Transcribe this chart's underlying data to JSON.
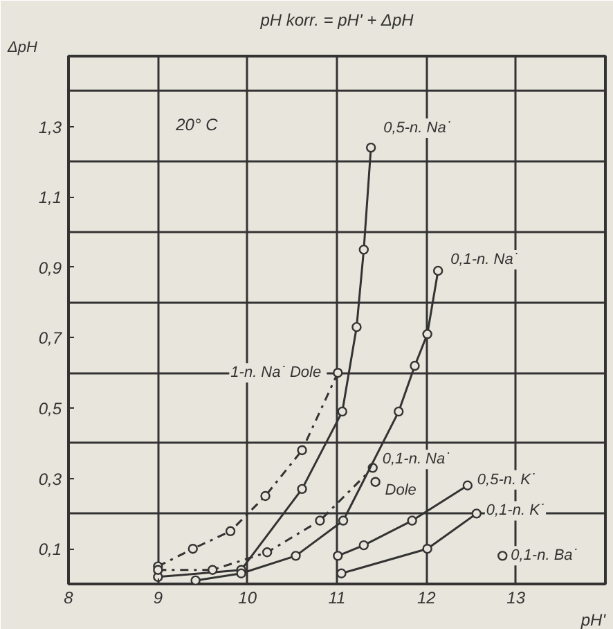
{
  "chart_data": {
    "type": "line",
    "title": "pH korr. = pH' + ΔpH",
    "xlabel": "pH'",
    "ylabel": "ΔpH",
    "xlim": [
      8,
      14
    ],
    "ylim": [
      0,
      1.5
    ],
    "xticks": [
      8,
      9,
      10,
      11,
      12,
      13,
      {
        "value": 14,
        "label": null
      }
    ],
    "yticks": [
      {
        "value": 0.1,
        "label": "0,1"
      },
      {
        "value": 0.2,
        "label": null
      },
      {
        "value": 0.3,
        "label": "0,3"
      },
      {
        "value": 0.4,
        "label": null
      },
      {
        "value": 0.5,
        "label": "0,5"
      },
      {
        "value": 0.6,
        "label": null
      },
      {
        "value": 0.7,
        "label": "0,7"
      },
      {
        "value": 0.8,
        "label": null
      },
      {
        "value": 0.9,
        "label": "0,9"
      },
      {
        "value": 1.0,
        "label": null
      },
      {
        "value": 1.1,
        "label": "1,1"
      },
      {
        "value": 1.2,
        "label": null
      },
      {
        "value": 1.3,
        "label": "1,3"
      },
      {
        "value": 1.4,
        "label": null
      }
    ],
    "grid": true,
    "marker": "circle",
    "series": [
      {
        "name": "1-n. Na˙  Dole",
        "color": "#333333",
        "line_style": "dashed",
        "x": [
          9.0,
          9.39,
          9.81,
          10.2,
          10.61,
          11.01
        ],
        "values": [
          0.05,
          0.1,
          0.15,
          0.25,
          0.38,
          0.6
        ]
      },
      {
        "name": "0,5-n. Na˙",
        "color": "#333333",
        "line_style": "solid",
        "x": [
          9.0,
          9.93,
          10.61,
          11.06,
          11.22,
          11.3,
          11.38
        ],
        "values": [
          0.02,
          0.04,
          0.27,
          0.49,
          0.73,
          0.95,
          1.24
        ]
      },
      {
        "name": "0,1-n. Na˙",
        "color": "#333333",
        "line_style": "dashed",
        "x": [
          9.0,
          9.61,
          10.22,
          10.81,
          11.4
        ],
        "values": [
          0.04,
          0.04,
          0.09,
          0.18,
          0.33
        ]
      },
      {
        "name": "0,1-n. Na˙",
        "color": "#333333",
        "line_style": "solid",
        "x": [
          9.42,
          9.93,
          10.54,
          11.07,
          11.69,
          11.87,
          12.01,
          12.13
        ],
        "values": [
          0.01,
          0.03,
          0.08,
          0.18,
          0.49,
          0.62,
          0.71,
          0.89
        ]
      },
      {
        "name": "Dole",
        "type": "scatter",
        "color": "#333333",
        "x": [
          11.43
        ],
        "values": [
          0.29
        ]
      },
      {
        "name": "0,5-n. K˙",
        "color": "#333333",
        "line_style": "solid",
        "x": [
          11.01,
          11.3,
          11.84,
          12.46
        ],
        "values": [
          0.08,
          0.11,
          0.18,
          0.28
        ]
      },
      {
        "name": "0,1-n. K˙",
        "color": "#333333",
        "line_style": "solid",
        "x": [
          11.05,
          12.01,
          12.56
        ],
        "values": [
          0.03,
          0.1,
          0.2
        ]
      },
      {
        "name": "0,1-n. Ba˙",
        "type": "scatter",
        "color": "#333333",
        "x": [
          12.85
        ],
        "values": [
          0.08
        ]
      }
    ],
    "annotations": [
      "20° C"
    ]
  }
}
